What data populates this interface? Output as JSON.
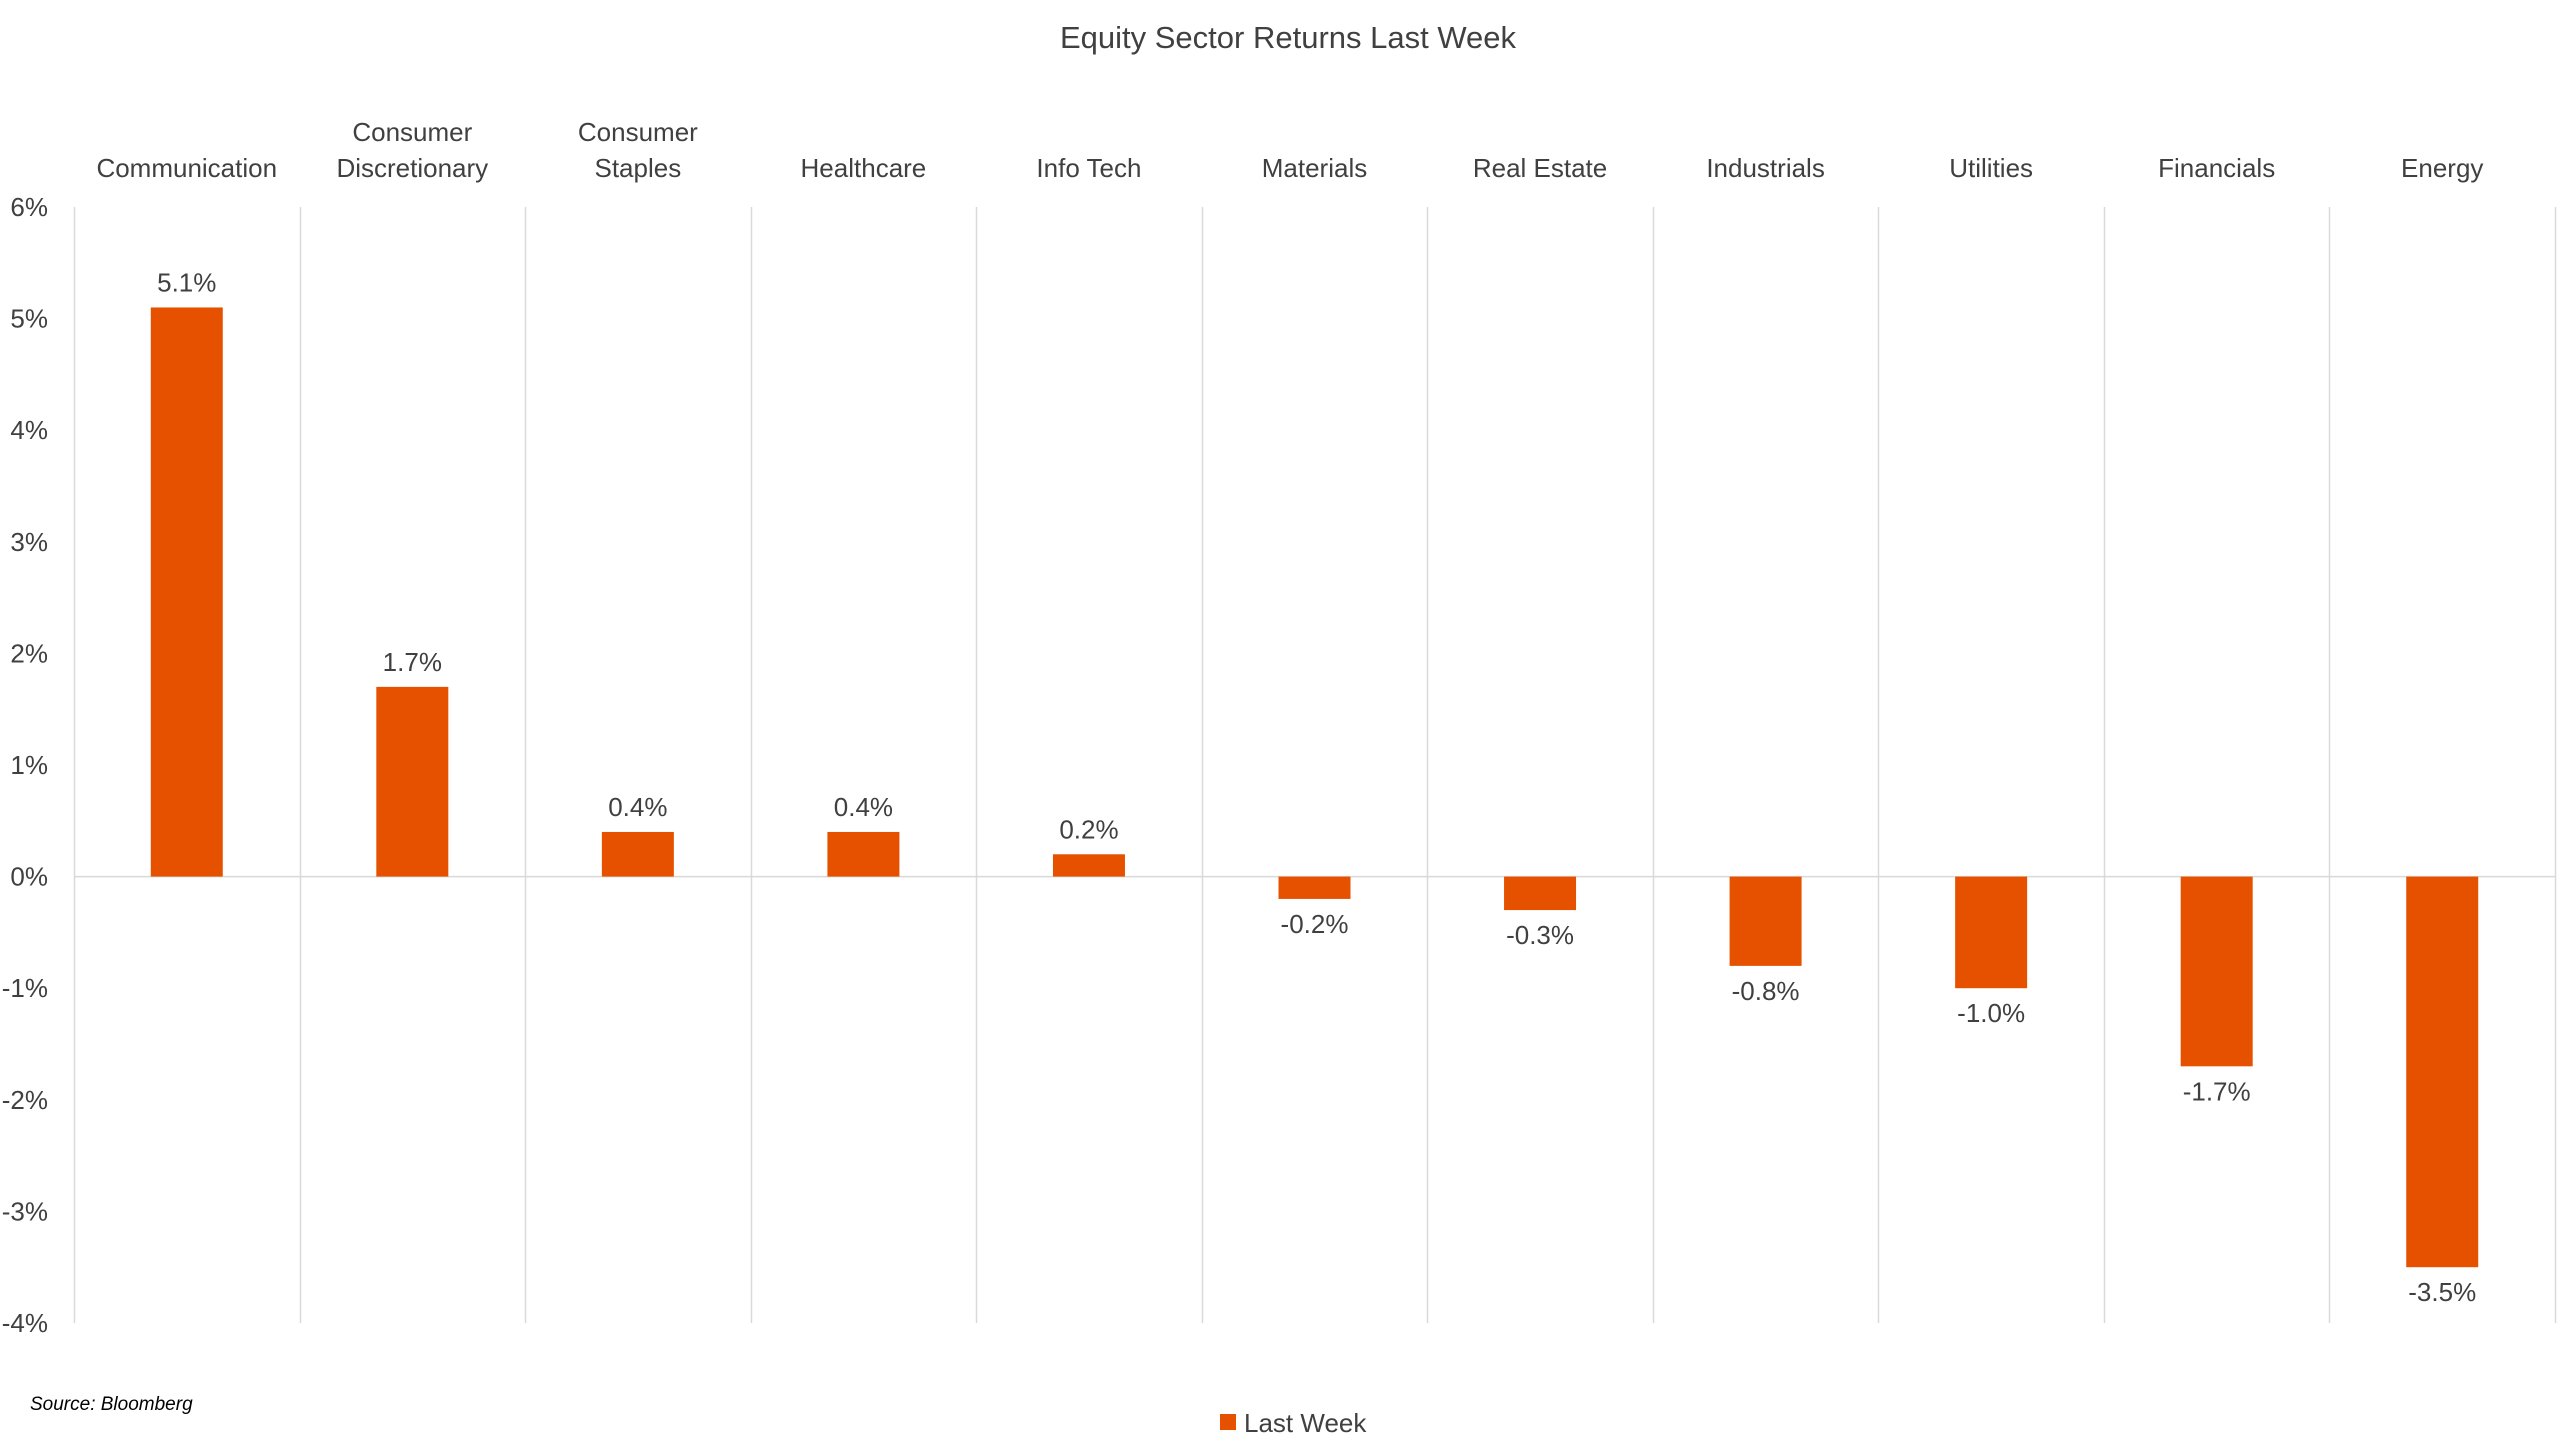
{
  "chart_data": {
    "type": "bar",
    "title": "Equity Sector Returns Last Week",
    "categories": [
      "Communication",
      "Consumer Discretionary",
      "Consumer Staples",
      "Healthcare",
      "Info Tech",
      "Materials",
      "Real Estate",
      "Industrials",
      "Utilities",
      "Financials",
      "Energy"
    ],
    "series": [
      {
        "name": "Last Week",
        "color": "#e65100",
        "values": [
          5.1,
          1.7,
          0.4,
          0.4,
          0.2,
          -0.2,
          -0.3,
          -0.8,
          -1.0,
          -1.7,
          -3.5
        ],
        "labels": [
          "5.1%",
          "1.7%",
          "0.4%",
          "0.4%",
          "0.2%",
          "-0.2%",
          "-0.3%",
          "-0.8%",
          "-1.0%",
          "-1.7%",
          "-3.5%"
        ]
      }
    ],
    "ylim": [
      -4,
      6
    ],
    "yticks": [
      6,
      5,
      4,
      3,
      2,
      1,
      0,
      -1,
      -2,
      -3,
      -4
    ],
    "ytick_labels": [
      "6%",
      "5%",
      "4%",
      "3%",
      "2%",
      "1%",
      "0%",
      "-1%",
      "-2%",
      "-3%",
      "-4%"
    ],
    "xlabel": "",
    "ylabel": "",
    "category_labels_position": "top",
    "grid": "vertical-between-categories",
    "legend": {
      "position": "bottom-center"
    },
    "source_note": "Source: Bloomberg"
  }
}
